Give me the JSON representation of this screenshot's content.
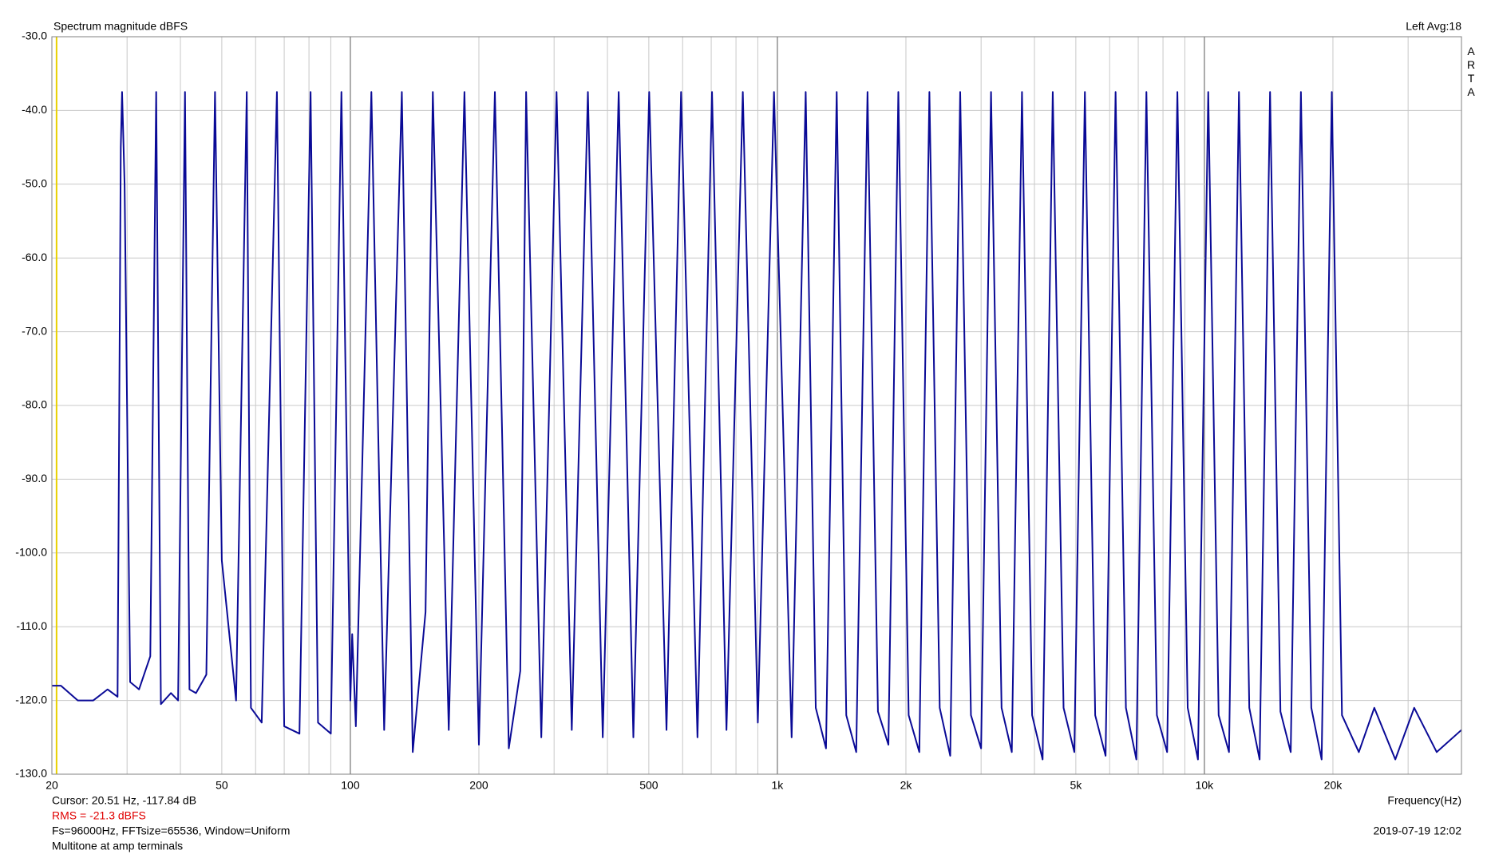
{
  "chart_data": {
    "type": "line",
    "title": "Spectrum magnitude dBFS",
    "channel_info": "Left  Avg:18",
    "brand": "ARTA",
    "x_label": "Frequency(Hz)",
    "cursor_text": "Cursor: 20.51 Hz, -117.84 dB",
    "cursor_x": 20.51,
    "cursor_color": "#e8d000",
    "rms_text": "RMS =  -21.3 dBFS",
    "settings_text": "Fs=96000Hz, FFTsize=65536, Window=Uniform",
    "note": "Multitone at amp terminals",
    "timestamp": "2019-07-19  12:02",
    "log_x": true,
    "grid": true,
    "xlim": [
      20,
      40000
    ],
    "ylim": [
      -130,
      -30
    ],
    "xticks": [
      20,
      50,
      100,
      200,
      500,
      {
        "value": 1000,
        "label": "1k"
      },
      {
        "value": 2000,
        "label": "2k"
      },
      {
        "value": 5000,
        "label": "5k"
      },
      {
        "value": 10000,
        "label": "10k"
      },
      {
        "value": 20000,
        "label": "20k"
      }
    ],
    "xgrid_minor": [
      30,
      40,
      60,
      70,
      80,
      90,
      300,
      400,
      600,
      700,
      800,
      900,
      3000,
      4000,
      6000,
      7000,
      8000,
      9000,
      30000
    ],
    "xgrid_major": [
      100,
      1000,
      10000
    ],
    "yticks": [
      {
        "value": -130,
        "label": "-130.0"
      },
      {
        "value": -120,
        "label": "-120.0"
      },
      {
        "value": -110,
        "label": "-110.0"
      },
      {
        "value": -100,
        "label": "-100.0"
      },
      {
        "value": -90,
        "label": "-90.0"
      },
      {
        "value": -80,
        "label": "-80.0"
      },
      {
        "value": -70,
        "label": "-70.0"
      },
      {
        "value": -60,
        "label": "-60.0"
      },
      {
        "value": -50,
        "label": "-50.0"
      },
      {
        "value": -40,
        "label": "-40.0"
      },
      {
        "value": -30,
        "label": "-30.0"
      }
    ],
    "series": [
      {
        "name": "Left",
        "color": "#0a0a96",
        "x": [
          20,
          21,
          23,
          25,
          27,
          28.5,
          29,
          29.2,
          29.6,
          30.5,
          32,
          34,
          35.1,
          36,
          38,
          39.5,
          41,
          42,
          43.5,
          46,
          48.2,
          50,
          54,
          57.2,
          58.5,
          62,
          67.3,
          70,
          76,
          80.7,
          84,
          90,
          95.3,
          100,
          101,
          103,
          112,
          120,
          132,
          140,
          150,
          156,
          170,
          185,
          200,
          218,
          235,
          250,
          258,
          280,
          304,
          330,
          360,
          390,
          425,
          460,
          501,
          550,
          595,
          650,
          703,
          760,
          830,
          900,
          982,
          1080,
          1165,
          1230,
          1300,
          1377,
          1450,
          1530,
          1626,
          1720,
          1820,
          1920,
          2030,
          2150,
          2270,
          2400,
          2540,
          2680,
          2840,
          3000,
          3165,
          3350,
          3540,
          3740,
          3950,
          4180,
          4415,
          4680,
          4960,
          5250,
          5550,
          5870,
          6195,
          6550,
          6930,
          7315,
          7740,
          8180,
          8645,
          9140,
          9660,
          10210,
          10800,
          11420,
          12050,
          12740,
          13470,
          14250,
          15070,
          15930,
          16830,
          17800,
          18820,
          19880,
          21000,
          23000,
          25000,
          28000,
          31000,
          35000,
          40000
        ],
        "values": [
          -118,
          -118,
          -120,
          -120,
          -118.5,
          -119.5,
          -45,
          -37.5,
          -50,
          -117.5,
          -118.5,
          -114,
          -37.5,
          -120.5,
          -119,
          -120,
          -37.5,
          -118.5,
          -119,
          -116.5,
          -37.5,
          -101,
          -120,
          -37.5,
          -121,
          -123,
          -37.5,
          -123.5,
          -124.5,
          -37.5,
          -123,
          -124.5,
          -37.5,
          -120,
          -111,
          -123.5,
          -37.5,
          -124,
          -37.5,
          -127,
          -108,
          -37.5,
          -124,
          -37.5,
          -126,
          -37.5,
          -126.5,
          -116,
          -37.5,
          -125,
          -37.5,
          -124,
          -37.5,
          -125,
          -37.5,
          -125,
          -37.5,
          -124,
          -37.5,
          -125,
          -37.5,
          -124,
          -37.5,
          -123,
          -37.5,
          -125,
          -37.5,
          -121,
          -126.5,
          -37.5,
          -122,
          -127,
          -37.5,
          -121.5,
          -126,
          -37.5,
          -122,
          -127,
          -37.5,
          -121,
          -127.5,
          -37.5,
          -122,
          -126.5,
          -37.5,
          -121,
          -127,
          -37.5,
          -122,
          -128,
          -37.5,
          -121,
          -127,
          -37.5,
          -122,
          -127.5,
          -37.5,
          -121,
          -128,
          -37.5,
          -122,
          -127,
          -37.5,
          -121,
          -128,
          -37.5,
          -122,
          -127,
          -37.5,
          -121,
          -128,
          -37.5,
          -121.5,
          -127,
          -37.5,
          -121,
          -128,
          -37.5,
          -122,
          -127,
          -121,
          -128,
          -121,
          -127,
          -124
        ]
      }
    ]
  }
}
